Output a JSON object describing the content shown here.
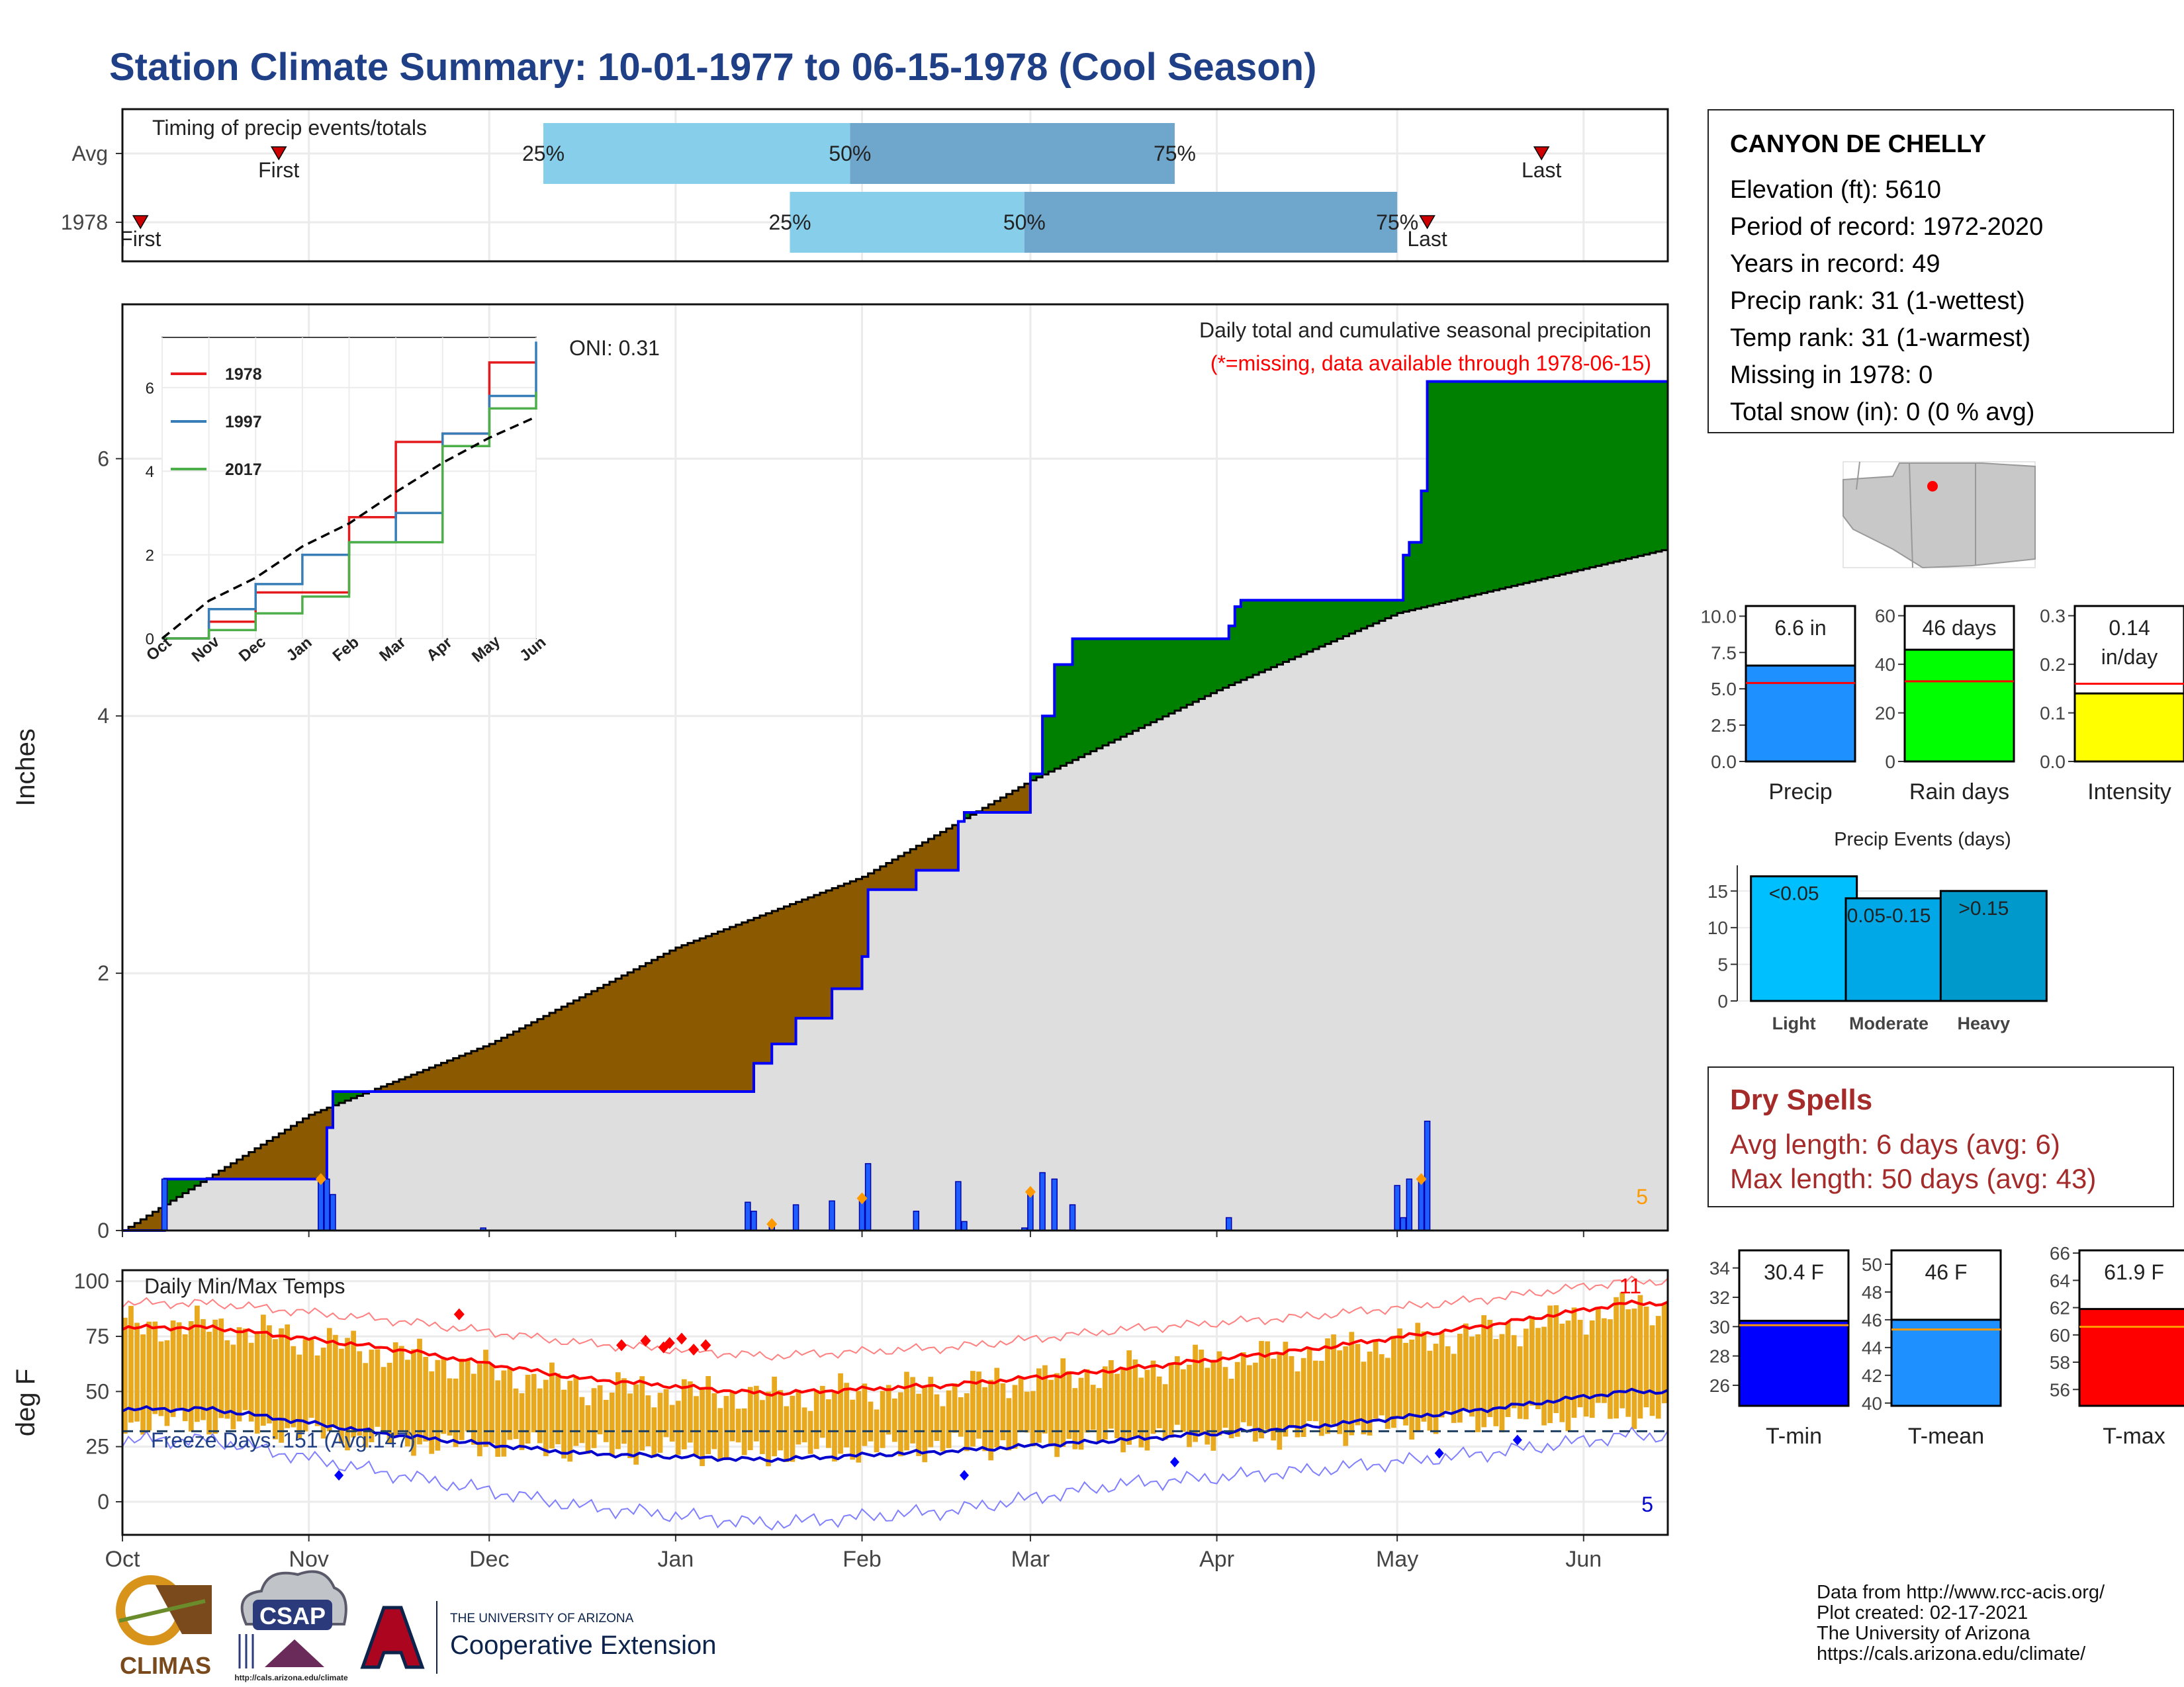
{
  "title": "Station Climate Summary: 10-01-1977 to 06-15-1978 (Cool Season)",
  "station": {
    "name": "CANYON DE CHELLY",
    "lines": [
      "Elevation (ft): 5610",
      "Period of record: 1972-2020",
      "Years in record: 49",
      "Precip rank: 31 (1-wettest)",
      "Temp rank: 31 (1-warmest)",
      "Missing in 1978: 0",
      "Total snow (in): 0 (0 % avg)"
    ]
  },
  "colors": {
    "title": "#1f3f87",
    "above_avg": "#008000",
    "below_avg": "#8b5a00",
    "cum_fill": "#dedede",
    "obs_line": "#0000ff",
    "tmax": "#ff0000",
    "tmin": "#0000cc",
    "range_bar": "#e8a91f",
    "q_light": "#87ceeb",
    "q_dark": "#6fa6cc",
    "dry": "#a52a2a"
  },
  "timing": {
    "title": "Timing of precip events/totals",
    "rows": [
      {
        "label": "Avg",
        "first": "1977-10-27",
        "q25": "1977-12-10",
        "q50": "1978-01-30",
        "q75": "1978-03-25",
        "last": "1978-05-25"
      },
      {
        "label": "1978",
        "first": "1977-10-04",
        "q25": "1978-01-20",
        "q50": "1978-02-28",
        "q75": "1978-05-01",
        "last": "1978-05-06"
      }
    ],
    "labels": {
      "first": "First",
      "last": "Last",
      "p25": "25%",
      "p50": "50%",
      "p75": "75%"
    }
  },
  "precip_panel": {
    "ylabel": "Inches",
    "note1": "Daily total and cumulative seasonal precipitation",
    "note2": "(*=missing, data available through 1978-06-15)",
    "oni": "ONI: 0.31",
    "corner": "5"
  },
  "temp_panel": {
    "ylabel": "deg F",
    "label": "Daily Min/Max Temps",
    "freeze": "Freeze Days: 151 (Avg:147)",
    "count_top": "11",
    "count_bottom": "5"
  },
  "months": [
    "Oct",
    "Nov",
    "Dec",
    "Jan",
    "Feb",
    "Mar",
    "Apr",
    "May",
    "Jun"
  ],
  "dry_spells": {
    "title": "Dry Spells",
    "avg": "Avg length: 6 days (avg: 6)",
    "max": "Max length: 50 days (avg: 43)"
  },
  "summary_bars": [
    {
      "name": "Precip",
      "value": 6.6,
      "avg": 5.4,
      "label": "6.6 in",
      "ylim": [
        0,
        10.7
      ],
      "ticks": [
        "0.0",
        "2.5",
        "5.0",
        "7.5",
        "10.0"
      ],
      "color": "#1e90ff"
    },
    {
      "name": "Rain days",
      "value": 46,
      "avg": 33,
      "label": "46 days",
      "ylim": [
        0,
        64
      ],
      "ticks": [
        "0",
        "20",
        "40",
        "60"
      ],
      "color": "#00ff00"
    },
    {
      "name": "Intensity",
      "value": 0.14,
      "avg": 0.16,
      "label": "0.14",
      "label2": "in/day",
      "ylim": [
        0,
        0.32
      ],
      "ticks": [
        "0.0",
        "0.1",
        "0.2",
        "0.3"
      ],
      "color": "#ffff00"
    }
  ],
  "events": {
    "title": "Precip Events (days)",
    "ticks": [
      "0",
      "5",
      "10",
      "15"
    ],
    "categories": [
      "Light",
      "Moderate",
      "Heavy"
    ],
    "labels": [
      "<0.05",
      "0.05-0.15",
      ">0.15"
    ],
    "values": [
      17,
      14,
      15
    ],
    "colors": [
      "#00bfff",
      "#00a8e8",
      "#0099cc"
    ]
  },
  "temp_bars": [
    {
      "name": "T-min",
      "value": 30.4,
      "avg": 30.1,
      "label": "30.4 F",
      "ylim": [
        24.6,
        35.2
      ],
      "ticks": [
        "26",
        "28",
        "30",
        "32",
        "34"
      ],
      "color": "#0000ff"
    },
    {
      "name": "T-mean",
      "value": 46,
      "avg": 45.3,
      "label": "46 F",
      "ylim": [
        39.8,
        51
      ],
      "ticks": [
        "40",
        "42",
        "44",
        "46",
        "48",
        "50"
      ],
      "color": "#1e90ff"
    },
    {
      "name": "T-max",
      "value": 61.9,
      "avg": 60.6,
      "label": "61.9 F",
      "ylim": [
        54.8,
        66.2
      ],
      "ticks": [
        "56",
        "58",
        "60",
        "62",
        "64",
        "66"
      ],
      "color": "#ff0000"
    }
  ],
  "credits": [
    "Data from http://www.rcc-acis.org/",
    "Plot created: 02-17-2021",
    "The University of Arizona",
    "https://cals.arizona.edu/climate/"
  ],
  "logos": {
    "climas": "CLIMAS",
    "csap": "CSAP",
    "csap_url": "http://cals.arizona.edu/climate",
    "ua_top": "THE UNIVERSITY OF ARIZONA",
    "ua_bottom": "Cooperative Extension"
  },
  "chart_data": [
    {
      "type": "area",
      "title": "Daily total and cumulative seasonal precipitation",
      "ylabel": "Inches",
      "ylim": [
        0,
        7.2
      ],
      "x_range": [
        "1977-10-01",
        "1978-06-15"
      ],
      "series": [
        {
          "name": "1978",
          "x": [
            "1977-10-01",
            "1977-10-08",
            "1977-11-03",
            "1977-11-04",
            "1977-11-05",
            "1978-01-13",
            "1978-01-14",
            "1978-01-17",
            "1978-01-21",
            "1978-01-27",
            "1978-02-01",
            "1978-02-02",
            "1978-02-10",
            "1978-02-17",
            "1978-02-18",
            "1978-02-28",
            "1978-03-01",
            "1978-03-03",
            "1978-03-05",
            "1978-03-08",
            "1978-04-03",
            "1978-04-04",
            "1978-04-05",
            "1978-05-01",
            "1978-05-02",
            "1978-05-03",
            "1978-05-05",
            "1978-05-06",
            "1978-06-15"
          ],
          "values": [
            0,
            0.4,
            0.4,
            0.8,
            1.08,
            1.08,
            1.3,
            1.45,
            1.65,
            1.88,
            2.13,
            2.65,
            2.8,
            3.18,
            3.25,
            3.25,
            3.55,
            4.0,
            4.4,
            4.6,
            4.7,
            4.85,
            4.9,
            4.9,
            5.25,
            5.35,
            5.75,
            6.6,
            6.6
          ]
        },
        {
          "name": "Avg",
          "x": [
            "1977-10-01",
            "1977-11-01",
            "1977-12-01",
            "1978-01-01",
            "1978-02-01",
            "1978-03-01",
            "1978-04-01",
            "1978-05-01",
            "1978-06-15"
          ],
          "values": [
            0,
            0.9,
            1.45,
            2.2,
            2.75,
            3.5,
            4.2,
            4.8,
            5.3
          ]
        }
      ],
      "daily_bars": {
        "x": [
          "1977-10-08",
          "1977-11-03",
          "1977-11-04",
          "1977-11-05",
          "1977-11-30",
          "1978-01-13",
          "1978-01-14",
          "1978-01-17",
          "1978-01-21",
          "1978-01-27",
          "1978-02-01",
          "1978-02-02",
          "1978-02-10",
          "1978-02-17",
          "1978-02-18",
          "1978-02-28",
          "1978-03-01",
          "1978-03-03",
          "1978-03-05",
          "1978-03-08",
          "1978-04-03",
          "1978-05-01",
          "1978-05-02",
          "1978-05-03",
          "1978-05-05",
          "1978-05-06"
        ],
        "values": [
          0.4,
          0.4,
          0.4,
          0.28,
          0.02,
          0.22,
          0.15,
          0.05,
          0.2,
          0.23,
          0.25,
          0.52,
          0.15,
          0.38,
          0.07,
          0.02,
          0.3,
          0.45,
          0.4,
          0.2,
          0.1,
          0.35,
          0.1,
          0.4,
          0.4,
          0.85
        ]
      }
    },
    {
      "type": "line",
      "title": "",
      "xlabel": "",
      "ylabel": "",
      "categories": [
        "Oct",
        "Nov",
        "Dec",
        "Jan",
        "Feb",
        "Mar",
        "Apr",
        "May",
        "Jun"
      ],
      "ylim": [
        0,
        7.2
      ],
      "series": [
        {
          "name": "1978",
          "values": [
            0,
            0.4,
            1.1,
            1.1,
            2.9,
            4.7,
            4.9,
            6.6,
            6.6
          ]
        },
        {
          "name": "1997",
          "values": [
            0,
            0.7,
            1.3,
            2.0,
            2.3,
            3.0,
            4.9,
            5.8,
            7.1
          ]
        },
        {
          "name": "2017",
          "values": [
            0,
            0.2,
            0.6,
            1.0,
            2.3,
            2.3,
            4.6,
            5.5,
            5.9
          ]
        },
        {
          "name": "Avg",
          "values": [
            0,
            0.9,
            1.45,
            2.2,
            2.75,
            3.5,
            4.2,
            4.8,
            5.3
          ]
        }
      ]
    },
    {
      "type": "line",
      "title": "Daily Min/Max Temps",
      "ylabel": "deg F",
      "ylim": [
        -15,
        105
      ],
      "categories": [
        "Oct",
        "Nov",
        "Dec",
        "Jan",
        "Feb",
        "Mar",
        "Apr",
        "May",
        "Jun"
      ],
      "freeze_line": 32,
      "series": [
        {
          "name": "Tmax normal",
          "values": [
            79,
            69,
            56,
            49,
            53,
            60,
            69,
            80,
            90
          ]
        },
        {
          "name": "Tmin normal",
          "values": [
            42,
            30,
            22,
            19,
            23,
            28,
            34,
            42,
            50
          ]
        },
        {
          "name": "Tmax 1978",
          "values": [
            80,
            67,
            52,
            48,
            52,
            60,
            68,
            77,
            88
          ]
        },
        {
          "name": "Tmin 1978",
          "values": [
            36,
            27,
            24,
            22,
            25,
            28,
            31,
            37,
            40
          ]
        },
        {
          "name": "Record high",
          "values": [
            90,
            82,
            72,
            66,
            70,
            78,
            84,
            92,
            100
          ]
        },
        {
          "name": "Record low",
          "values": [
            28,
            12,
            -2,
            -10,
            -4,
            8,
            14,
            22,
            30
          ]
        }
      ]
    },
    {
      "type": "bar",
      "title": "",
      "categories": [
        "Precip",
        "Rain days",
        "Intensity"
      ],
      "values": [
        6.6,
        46,
        0.14
      ],
      "averages": [
        5.4,
        33,
        0.16
      ]
    },
    {
      "type": "bar",
      "title": "Precip Events (days)",
      "categories": [
        "Light",
        "Moderate",
        "Heavy"
      ],
      "values": [
        17,
        14,
        15
      ]
    },
    {
      "type": "bar",
      "title": "",
      "categories": [
        "T-min",
        "T-mean",
        "T-max"
      ],
      "values": [
        30.4,
        46,
        61.9
      ],
      "averages": [
        30.1,
        45.3,
        60.6
      ]
    }
  ]
}
